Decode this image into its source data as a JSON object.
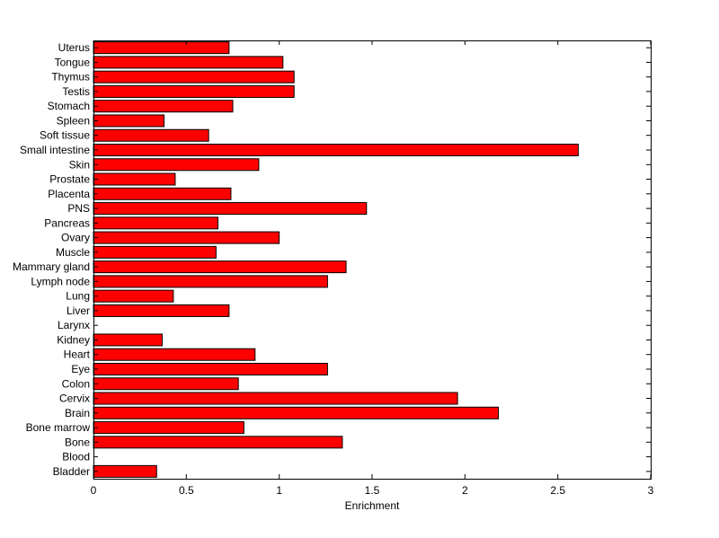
{
  "chart_data": {
    "type": "bar",
    "orientation": "horizontal",
    "title": "",
    "xlabel": "Enrichment",
    "ylabel": "",
    "xlim": [
      0,
      3
    ],
    "xticks": [
      0,
      0.5,
      1,
      1.5,
      2,
      2.5,
      3
    ],
    "xtick_labels": [
      "0",
      "0.5",
      "1",
      "1.5",
      "2",
      "2.5",
      "3"
    ],
    "grid": false,
    "legend": "none",
    "bar_color": "#ff0000",
    "edge_color": "#000000",
    "categories": [
      "Bladder",
      "Blood",
      "Bone",
      "Bone marrow",
      "Brain",
      "Cervix",
      "Colon",
      "Eye",
      "Heart",
      "Kidney",
      "Larynx",
      "Liver",
      "Lung",
      "Lymph node",
      "Mammary gland",
      "Muscle",
      "Ovary",
      "Pancreas",
      "PNS",
      "Placenta",
      "Prostate",
      "Skin",
      "Small intestine",
      "Soft tissue",
      "Spleen",
      "Stomach",
      "Testis",
      "Thymus",
      "Tongue",
      "Uterus"
    ],
    "values": [
      0.34,
      0,
      1.34,
      0.81,
      2.18,
      1.96,
      0.78,
      1.26,
      0.87,
      0.37,
      0,
      0.73,
      0.43,
      1.26,
      1.36,
      0.66,
      1.0,
      0.67,
      1.47,
      0.74,
      0.44,
      0.89,
      2.61,
      0.62,
      0.38,
      0.75,
      1.08,
      1.08,
      1.02,
      0.73
    ]
  }
}
